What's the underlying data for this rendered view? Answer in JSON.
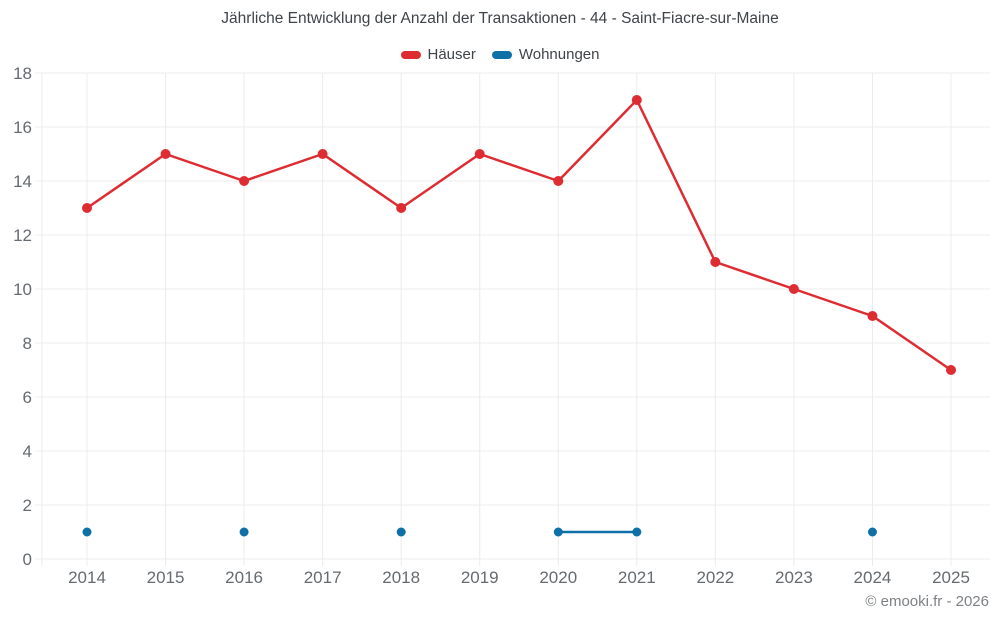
{
  "chart_data": {
    "type": "line",
    "title": "Jährliche Entwicklung der Anzahl der Transaktionen - 44 - Saint-Fiacre-sur-Maine",
    "categories": [
      "2014",
      "2015",
      "2016",
      "2017",
      "2018",
      "2019",
      "2020",
      "2021",
      "2022",
      "2023",
      "2024",
      "2025"
    ],
    "series": [
      {
        "name": "Häuser",
        "color": "#de2c33",
        "marker_radius": 5,
        "line_width": 2.5,
        "values": [
          13,
          15,
          14,
          15,
          13,
          15,
          14,
          17,
          11,
          10,
          9,
          7
        ]
      },
      {
        "name": "Wohnungen",
        "color": "#0f70a8",
        "marker_radius": 4.5,
        "line_width": 2.5,
        "values": [
          1,
          null,
          1,
          null,
          1,
          null,
          1,
          1,
          null,
          null,
          1,
          null
        ]
      }
    ],
    "xlabel": "",
    "ylabel": "",
    "ylim": [
      0,
      18
    ],
    "ytick_step": 2,
    "ytick_labels": [
      "0",
      "2",
      "4",
      "6",
      "8",
      "10",
      "12",
      "14",
      "16",
      "18"
    ],
    "grid": true,
    "legend_position": "top"
  },
  "footer": {
    "copyright": "© emooki.fr - 2026"
  },
  "colors": {
    "background": "#ffffff",
    "grid": "#ececec",
    "axis_labels": "#666b70",
    "title": "#3f4449",
    "copyright": "#7d8185"
  }
}
